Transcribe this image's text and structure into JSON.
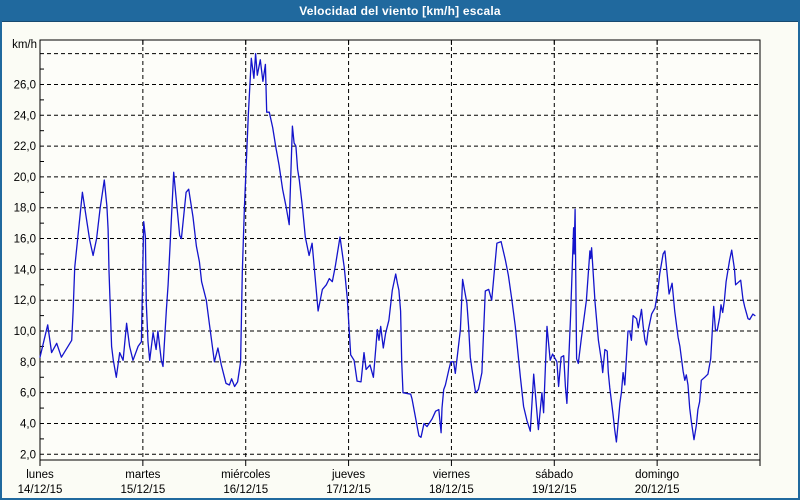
{
  "window": {
    "title": "Velocidad del viento [km/h] escala"
  },
  "colors": {
    "title_bar": "#20699e",
    "title_text": "#ffffff",
    "background": "#fbfcf5",
    "plot_background": "#fdfdf9",
    "frame": "#000000",
    "grid": "#000000",
    "line": "#1414cc",
    "label_text": "#000000"
  },
  "chart_data": {
    "type": "line",
    "title": "Velocidad del viento [km/h] escala",
    "ylabel": "km/h",
    "y_axis": {
      "min_value": 1.6,
      "max_value": 28.9,
      "gridline_step": 2,
      "gridline_values": [
        2,
        4,
        6,
        8,
        10,
        12,
        14,
        16,
        18,
        20,
        22,
        24,
        26,
        28
      ],
      "tick_labels": [
        "2,0",
        "4,0",
        "6,0",
        "8,0",
        "10,0",
        "12,0",
        "14,0",
        "16,0",
        "18,0",
        "20,0",
        "22,0",
        "24,0",
        "26,0"
      ],
      "grid_style": "dashed"
    },
    "x_axis": {
      "unit": "hours",
      "range_hours": [
        0,
        168
      ],
      "day_labels": [
        {
          "name": "lunes",
          "date": "14/12/15"
        },
        {
          "name": "martes",
          "date": "15/12/15"
        },
        {
          "name": "miércoles",
          "date": "16/12/15"
        },
        {
          "name": "jueves",
          "date": "17/12/15"
        },
        {
          "name": "viernes",
          "date": "18/12/15"
        },
        {
          "name": "sábado",
          "date": "19/12/15"
        },
        {
          "name": "domingo",
          "date": "20/12/15"
        }
      ],
      "grid_style": "dashed"
    },
    "series": [
      {
        "name": "wind_speed_kmh",
        "points": [
          [
            0,
            8.3
          ],
          [
            1.8,
            10.4
          ],
          [
            2.7,
            8.6
          ],
          [
            3.9,
            9.2
          ],
          [
            5,
            8.3
          ],
          [
            7.4,
            9.4
          ],
          [
            7.75,
            11.4
          ],
          [
            8.1,
            14.1
          ],
          [
            9.9,
            19
          ],
          [
            11.6,
            15.9
          ],
          [
            12.4,
            14.9
          ],
          [
            13.2,
            16
          ],
          [
            14,
            17.9
          ],
          [
            15,
            19.8
          ],
          [
            15.6,
            18.1
          ],
          [
            15.9,
            16.6
          ],
          [
            16.1,
            13.9
          ],
          [
            16.7,
            9
          ],
          [
            17.1,
            8.1
          ],
          [
            17.8,
            7
          ],
          [
            18.6,
            8.6
          ],
          [
            19.4,
            8.1
          ],
          [
            20.2,
            10.5
          ],
          [
            20.9,
            9
          ],
          [
            21.7,
            8.1
          ],
          [
            22.9,
            9
          ],
          [
            23.65,
            9.3
          ],
          [
            24.2,
            17.1
          ],
          [
            24.6,
            16.1
          ],
          [
            24.8,
            11.8
          ],
          [
            25.2,
            9.3
          ],
          [
            25.6,
            8.1
          ],
          [
            26.4,
            9.9
          ],
          [
            27.1,
            8.8
          ],
          [
            27.5,
            10
          ],
          [
            28.3,
            8.1
          ],
          [
            28.7,
            7.7
          ],
          [
            29.5,
            11.4
          ],
          [
            29.9,
            13
          ],
          [
            31.2,
            20.3
          ],
          [
            31.8,
            18.5
          ],
          [
            32.6,
            16.2
          ],
          [
            33,
            16
          ],
          [
            34.1,
            19
          ],
          [
            34.7,
            19.2
          ],
          [
            35.7,
            17.4
          ],
          [
            36.5,
            15.5
          ],
          [
            37.2,
            14.5
          ],
          [
            37.7,
            13.2
          ],
          [
            38.8,
            12
          ],
          [
            39.5,
            10.5
          ],
          [
            40.7,
            8
          ],
          [
            41.5,
            8.9
          ],
          [
            42.3,
            7.8
          ],
          [
            43.4,
            6.6
          ],
          [
            44.2,
            6.5
          ],
          [
            44.7,
            6.9
          ],
          [
            45.4,
            6.4
          ],
          [
            46.1,
            6.7
          ],
          [
            46.8,
            8
          ],
          [
            47.2,
            13.8
          ],
          [
            47.7,
            18
          ],
          [
            48.6,
            24
          ],
          [
            49.3,
            27.7
          ],
          [
            49.9,
            26.4
          ],
          [
            50.3,
            28
          ],
          [
            50.7,
            26.6
          ],
          [
            51.4,
            27.6
          ],
          [
            52,
            26.2
          ],
          [
            52.6,
            27.3
          ],
          [
            52.9,
            24.2
          ],
          [
            53.5,
            24.2
          ],
          [
            54.3,
            23.2
          ],
          [
            55.05,
            21.9
          ],
          [
            55.8,
            20.75
          ],
          [
            56.6,
            19.2
          ],
          [
            57.4,
            18.1
          ],
          [
            58.15,
            16.9
          ],
          [
            58.9,
            23.3
          ],
          [
            59.3,
            22.2
          ],
          [
            59.7,
            22
          ],
          [
            60.1,
            20.5
          ],
          [
            60.5,
            19.8
          ],
          [
            61.25,
            18
          ],
          [
            61.9,
            16.1
          ],
          [
            62.8,
            14.9
          ],
          [
            63.5,
            15.7
          ],
          [
            64.9,
            11.3
          ],
          [
            65.9,
            12.7
          ],
          [
            66.8,
            13
          ],
          [
            67.5,
            13.4
          ],
          [
            68.2,
            13.2
          ],
          [
            68.9,
            14.2
          ],
          [
            70,
            16.1
          ],
          [
            71,
            14.1
          ],
          [
            71.7,
            12.1
          ],
          [
            72.5,
            8.45
          ],
          [
            73.3,
            8.1
          ],
          [
            74,
            6.75
          ],
          [
            74.9,
            6.7
          ],
          [
            75.6,
            8.6
          ],
          [
            76.1,
            7.5
          ],
          [
            77,
            7.8
          ],
          [
            77.8,
            7
          ],
          [
            78.7,
            10.1
          ],
          [
            79.1,
            9.4
          ],
          [
            79.5,
            10.3
          ],
          [
            80.1,
            8.9
          ],
          [
            80.65,
            9.85
          ],
          [
            81.4,
            10.7
          ],
          [
            82.2,
            12.65
          ],
          [
            83,
            13.7
          ],
          [
            83.4,
            13.1
          ],
          [
            83.75,
            12.65
          ],
          [
            84.15,
            11.3
          ],
          [
            84.4,
            8
          ],
          [
            84.7,
            6
          ],
          [
            86.5,
            5.9
          ],
          [
            86.8,
            5.6
          ],
          [
            88.4,
            3.2
          ],
          [
            88.9,
            3.1
          ],
          [
            89.6,
            4
          ],
          [
            90.3,
            3.8
          ],
          [
            91.5,
            4.3
          ],
          [
            92.3,
            4.8
          ],
          [
            93.05,
            4.9
          ],
          [
            93.6,
            3.4
          ],
          [
            93.8,
            5
          ],
          [
            94.2,
            6.2
          ],
          [
            94.6,
            6.5
          ],
          [
            95.4,
            7.5
          ],
          [
            95.85,
            8
          ],
          [
            96.5,
            8
          ],
          [
            96.9,
            7.25
          ],
          [
            98.1,
            10.1
          ],
          [
            98.6,
            13.35
          ],
          [
            99.6,
            11.8
          ],
          [
            100,
            10.3
          ],
          [
            100.4,
            8.3
          ],
          [
            100.8,
            7.5
          ],
          [
            101.65,
            6
          ],
          [
            102.3,
            6.2
          ],
          [
            103.1,
            7.3
          ],
          [
            103.9,
            12.6
          ],
          [
            104.7,
            12.7
          ],
          [
            105.4,
            12
          ],
          [
            106.6,
            15.7
          ],
          [
            107.6,
            15.8
          ],
          [
            108.6,
            14.6
          ],
          [
            109.3,
            13.6
          ],
          [
            110.1,
            12
          ],
          [
            110.9,
            10.3
          ],
          [
            111.7,
            8.1
          ],
          [
            112.1,
            7
          ],
          [
            112.85,
            5.1
          ],
          [
            113.6,
            4.2
          ],
          [
            114.4,
            3.5
          ],
          [
            115.2,
            7.2
          ],
          [
            116.3,
            3.6
          ],
          [
            117.1,
            6
          ],
          [
            117.5,
            4.7
          ],
          [
            118.3,
            10.3
          ],
          [
            119.05,
            8.1
          ],
          [
            119.6,
            8.5
          ],
          [
            120.6,
            8
          ],
          [
            121,
            6.4
          ],
          [
            121.6,
            8.3
          ],
          [
            122.2,
            8.4
          ],
          [
            122.6,
            6.4
          ],
          [
            122.95,
            5.3
          ],
          [
            123.8,
            11
          ],
          [
            124.5,
            16.7
          ],
          [
            124.62,
            15
          ],
          [
            124.85,
            17.9
          ],
          [
            125.2,
            8.2
          ],
          [
            125.6,
            7.9
          ],
          [
            126.3,
            9.5
          ],
          [
            127.5,
            12
          ],
          [
            128.3,
            15.2
          ],
          [
            128.5,
            14.7
          ],
          [
            128.7,
            15.4
          ],
          [
            129.5,
            11.9
          ],
          [
            130.3,
            9.4
          ],
          [
            131.05,
            8
          ],
          [
            131.3,
            7.3
          ],
          [
            131.8,
            8.8
          ],
          [
            132.35,
            8.7
          ],
          [
            132.6,
            7.3
          ],
          [
            132.95,
            6.3
          ],
          [
            133.7,
            4.6
          ],
          [
            134.1,
            3.6
          ],
          [
            134.5,
            2.8
          ],
          [
            135.3,
            5.3
          ],
          [
            135.65,
            6
          ],
          [
            136.05,
            7.3
          ],
          [
            136.45,
            6.5
          ],
          [
            137.2,
            10
          ],
          [
            137.6,
            10
          ],
          [
            138,
            9.4
          ],
          [
            138.4,
            11
          ],
          [
            139.2,
            10.8
          ],
          [
            139.6,
            10.2
          ],
          [
            140.35,
            11.4
          ],
          [
            140.75,
            10.3
          ],
          [
            141.15,
            9.4
          ],
          [
            141.5,
            9.1
          ],
          [
            141.9,
            10
          ],
          [
            142.7,
            11.1
          ],
          [
            143.5,
            11.5
          ],
          [
            144.2,
            12.7
          ],
          [
            144.6,
            13.7
          ],
          [
            145.4,
            15
          ],
          [
            145.8,
            15.2
          ],
          [
            146.8,
            12.4
          ],
          [
            147.5,
            13.1
          ],
          [
            148.1,
            11.3
          ],
          [
            148.9,
            9.6
          ],
          [
            149.3,
            9
          ],
          [
            150.05,
            7.4
          ],
          [
            150.45,
            6.8
          ],
          [
            150.8,
            7.15
          ],
          [
            151.2,
            6.5
          ],
          [
            151.6,
            5
          ],
          [
            152,
            4.1
          ],
          [
            152.6,
            2.95
          ],
          [
            153.15,
            3.9
          ],
          [
            153.5,
            4.9
          ],
          [
            153.9,
            5.4
          ],
          [
            154.3,
            6.8
          ],
          [
            155.1,
            7
          ],
          [
            155.85,
            7.2
          ],
          [
            156.5,
            8.2
          ],
          [
            157.2,
            11.6
          ],
          [
            157.6,
            10.1
          ],
          [
            158,
            10
          ],
          [
            158.6,
            10.9
          ],
          [
            158.9,
            11.7
          ],
          [
            159.3,
            11.2
          ],
          [
            159.7,
            12
          ],
          [
            160.1,
            13.2
          ],
          [
            160.9,
            14.6
          ],
          [
            161.4,
            15.25
          ],
          [
            162.05,
            14
          ],
          [
            162.3,
            13
          ],
          [
            163.5,
            13.3
          ],
          [
            164,
            12.1
          ],
          [
            164.4,
            11.6
          ],
          [
            165.2,
            10.8
          ],
          [
            165.6,
            10.75
          ],
          [
            166.35,
            11.1
          ],
          [
            166.8,
            11
          ]
        ]
      }
    ],
    "legend": null,
    "grid": true
  }
}
